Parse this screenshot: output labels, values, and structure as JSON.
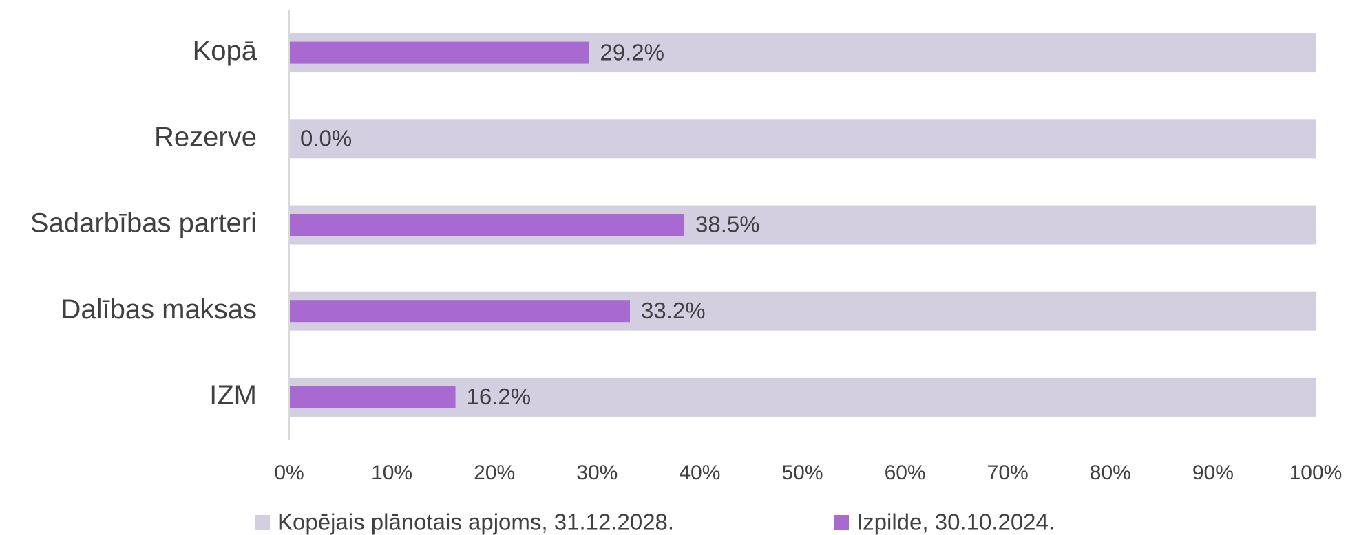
{
  "chart_data": {
    "type": "bar",
    "orientation": "horizontal",
    "categories": [
      "Kopā",
      "Rezerve",
      "Sadarbības parteri",
      "Dalības maksas",
      "IZM"
    ],
    "series": [
      {
        "name": "Kopējais plānotais apjoms, 31.12.2028.",
        "color": "#d3cfe0",
        "values": [
          100,
          100,
          100,
          100,
          100
        ]
      },
      {
        "name": "Izpilde, 30.10.2024.",
        "color": "#a86ad1",
        "values": [
          29.2,
          0.0,
          38.5,
          33.2,
          16.2
        ],
        "value_labels": [
          "29.2%",
          "0.0%",
          "38.5%",
          "33.2%",
          "16.2%"
        ]
      }
    ],
    "xlim": [
      0,
      100
    ],
    "xticks": [
      {
        "value": 0,
        "label": "0%"
      },
      {
        "value": 10,
        "label": "10%"
      },
      {
        "value": 20,
        "label": "20%"
      },
      {
        "value": 30,
        "label": "30%"
      },
      {
        "value": 40,
        "label": "40%"
      },
      {
        "value": 50,
        "label": "50%"
      },
      {
        "value": 60,
        "label": "60%"
      },
      {
        "value": 70,
        "label": "70%"
      },
      {
        "value": 80,
        "label": "80%"
      },
      {
        "value": 90,
        "label": "90%"
      },
      {
        "value": 100,
        "label": "100%"
      }
    ],
    "legend": "bottom"
  }
}
